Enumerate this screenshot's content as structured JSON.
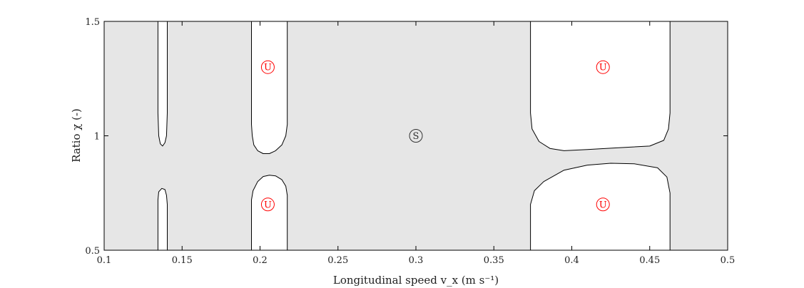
{
  "chart_data": {
    "type": "area",
    "title": "",
    "xlabel": "Longitudinal speed v_x (m s⁻¹)",
    "ylabel": "Ratio χ (-)",
    "xlim": [
      0.1,
      0.5
    ],
    "ylim": [
      0.5,
      1.5
    ],
    "x_ticks": [
      0.1,
      0.15,
      0.2,
      0.25,
      0.3,
      0.35,
      0.4,
      0.45,
      0.5
    ],
    "x_tick_labels": [
      "0.1",
      "0.15",
      "0.2",
      "0.25",
      "0.3",
      "0.35",
      "0.4",
      "0.45",
      "0.5"
    ],
    "y_ticks": [
      0.5,
      1,
      1.5
    ],
    "y_tick_labels": [
      "0.5",
      "1",
      "1.5"
    ],
    "grid": false,
    "stable_fill_color": "#e6e6e6",
    "unstable_fill_color": "#ffffff",
    "boundary_color": "#000000",
    "marker_color_unstable": "#ff0000",
    "marker_color_stable": "#333333",
    "unstable_regions": [
      {
        "points": [
          [
            0.1345,
            1.5
          ],
          [
            0.1405,
            1.5
          ],
          [
            0.1405,
            1.1
          ],
          [
            0.14,
            1.0
          ],
          [
            0.139,
            0.97
          ],
          [
            0.1375,
            0.955
          ],
          [
            0.136,
            0.965
          ],
          [
            0.135,
            1.0
          ],
          [
            0.1345,
            1.1
          ]
        ]
      },
      {
        "points": [
          [
            0.1345,
            0.5
          ],
          [
            0.1345,
            0.72
          ],
          [
            0.135,
            0.755
          ],
          [
            0.137,
            0.77
          ],
          [
            0.139,
            0.765
          ],
          [
            0.14,
            0.74
          ],
          [
            0.1405,
            0.7
          ],
          [
            0.1405,
            0.5
          ]
        ]
      },
      {
        "points": [
          [
            0.1945,
            1.5
          ],
          [
            0.2175,
            1.5
          ],
          [
            0.2175,
            1.05
          ],
          [
            0.2165,
            1.0
          ],
          [
            0.214,
            0.96
          ],
          [
            0.21,
            0.935
          ],
          [
            0.206,
            0.922
          ],
          [
            0.202,
            0.922
          ],
          [
            0.1985,
            0.935
          ],
          [
            0.196,
            0.96
          ],
          [
            0.195,
            1.0
          ],
          [
            0.1945,
            1.05
          ]
        ]
      },
      {
        "points": [
          [
            0.1945,
            0.5
          ],
          [
            0.1945,
            0.72
          ],
          [
            0.1955,
            0.76
          ],
          [
            0.1985,
            0.8
          ],
          [
            0.202,
            0.822
          ],
          [
            0.206,
            0.828
          ],
          [
            0.21,
            0.825
          ],
          [
            0.214,
            0.808
          ],
          [
            0.2165,
            0.78
          ],
          [
            0.2175,
            0.74
          ],
          [
            0.2175,
            0.5
          ]
        ]
      },
      {
        "points": [
          [
            0.3735,
            1.5
          ],
          [
            0.463,
            1.5
          ],
          [
            0.463,
            1.1
          ],
          [
            0.462,
            1.03
          ],
          [
            0.459,
            0.98
          ],
          [
            0.45,
            0.955
          ],
          [
            0.43,
            0.948
          ],
          [
            0.41,
            0.94
          ],
          [
            0.395,
            0.935
          ],
          [
            0.386,
            0.945
          ],
          [
            0.379,
            0.975
          ],
          [
            0.3745,
            1.03
          ],
          [
            0.3735,
            1.1
          ]
        ]
      },
      {
        "points": [
          [
            0.3735,
            0.5
          ],
          [
            0.3735,
            0.7
          ],
          [
            0.376,
            0.76
          ],
          [
            0.382,
            0.8
          ],
          [
            0.395,
            0.85
          ],
          [
            0.41,
            0.872
          ],
          [
            0.425,
            0.88
          ],
          [
            0.44,
            0.878
          ],
          [
            0.455,
            0.86
          ],
          [
            0.461,
            0.82
          ],
          [
            0.463,
            0.75
          ],
          [
            0.463,
            0.5
          ]
        ]
      }
    ],
    "region_markers": [
      {
        "label": "U",
        "x": 0.205,
        "y": 1.3,
        "kind": "unstable"
      },
      {
        "label": "U",
        "x": 0.205,
        "y": 0.7,
        "kind": "unstable"
      },
      {
        "label": "U",
        "x": 0.42,
        "y": 1.3,
        "kind": "unstable"
      },
      {
        "label": "U",
        "x": 0.42,
        "y": 0.7,
        "kind": "unstable"
      },
      {
        "label": "S",
        "x": 0.3,
        "y": 1.0,
        "kind": "stable"
      }
    ]
  }
}
